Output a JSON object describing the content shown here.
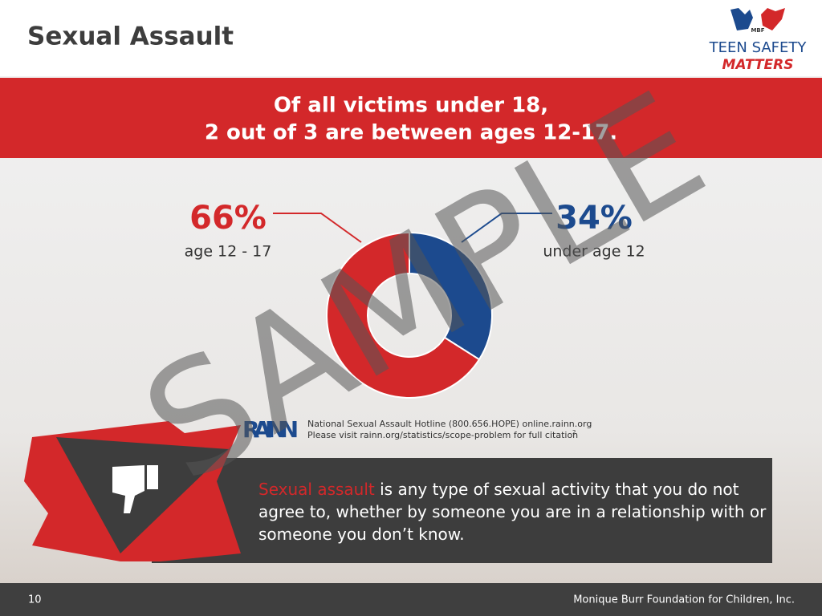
{
  "header": {
    "title": "Sexual Assault",
    "logo": {
      "initials": "MBF",
      "line1": "TEEN SAFETY",
      "line2": "MATTERS"
    }
  },
  "banner": {
    "line1": "Of all victims under 18,",
    "line2": "2 out of 3 are between ages 12-17."
  },
  "chart_data": {
    "type": "donut",
    "categories": [
      "age 12 - 17",
      "under age 12"
    ],
    "values": [
      66,
      34
    ],
    "value_labels": [
      "66%",
      "34%"
    ],
    "colors": [
      "#d3282a",
      "#1c4a8e"
    ]
  },
  "citation": {
    "source": "RAINN",
    "line1": "National Sexual Assault Hotline (800.656.HOPE) online.rainn.org",
    "line2": "Please visit rainn.org/statistics/scope-problem for full citation",
    "note": "2"
  },
  "definition": {
    "term": "Sexual assault",
    "text": "is any type of sexual activity that you do not agree to, whether by someone you are in a relationship with or someone you don’t know."
  },
  "watermark": "SAMPLE",
  "footer": {
    "page": "10",
    "organization": "Monique Burr Foundation for Children, Inc."
  }
}
